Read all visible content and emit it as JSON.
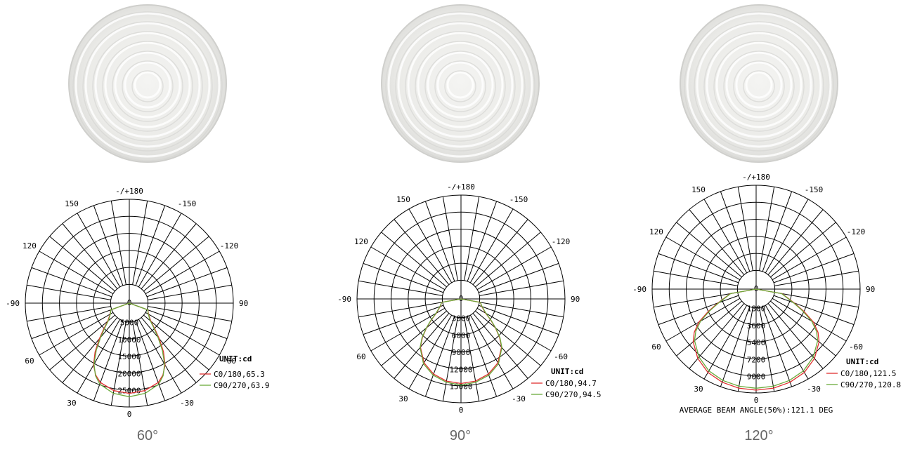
{
  "colors": {
    "c0_180": "#e03030",
    "c90_270": "#6aaa3a",
    "grid": "#000000",
    "caption": "#666666"
  },
  "icon": "lens-photo",
  "chart_data": [
    {
      "type": "polar",
      "caption": "60°",
      "unit_label": "UNIT:cd",
      "angle_labels": [
        "-/+180",
        "150",
        "120",
        "90",
        "60",
        "30",
        "0",
        "-30",
        "-60",
        "-90",
        "-120",
        "-150",
        "0"
      ],
      "radial_ticks": [
        "0",
        "5000",
        "10000",
        "15000",
        "20000",
        "25000"
      ],
      "rmax": 25000,
      "series": [
        {
          "name": "C0/180,65.3",
          "values": [
            [
              0,
              21000
            ],
            [
              10,
              20600
            ],
            [
              20,
              19300
            ],
            [
              25,
              17800
            ],
            [
              30,
              15500
            ],
            [
              35,
              12000
            ],
            [
              40,
              8200
            ],
            [
              45,
              5000
            ],
            [
              50,
              2800
            ],
            [
              60,
              1000
            ],
            [
              70,
              300
            ],
            [
              90,
              0
            ]
          ]
        },
        {
          "name": "C90/270,63.9",
          "values": [
            [
              0,
              22000
            ],
            [
              10,
              21400
            ],
            [
              20,
              19800
            ],
            [
              25,
              18000
            ],
            [
              30,
              15200
            ],
            [
              35,
              11400
            ],
            [
              40,
              7600
            ],
            [
              45,
              4600
            ],
            [
              50,
              2500
            ],
            [
              60,
              900
            ],
            [
              70,
              250
            ],
            [
              90,
              0
            ]
          ]
        }
      ],
      "footer": ""
    },
    {
      "type": "polar",
      "caption": "90°",
      "unit_label": "UNIT:cd",
      "angle_labels": [
        "-/+180",
        "150",
        "120",
        "90",
        "60",
        "30",
        "0",
        "-30",
        "-60",
        "-90",
        "-120",
        "-150",
        "0"
      ],
      "radial_ticks": [
        "0",
        "3000",
        "6000",
        "9000",
        "12000",
        "15000"
      ],
      "rmax": 15000,
      "series": [
        {
          "name": "C0/180,94.7",
          "values": [
            [
              0,
              11600
            ],
            [
              10,
              11400
            ],
            [
              20,
              10800
            ],
            [
              30,
              9700
            ],
            [
              40,
              7800
            ],
            [
              45,
              6300
            ],
            [
              50,
              4600
            ],
            [
              55,
              3000
            ],
            [
              60,
              1700
            ],
            [
              70,
              600
            ],
            [
              80,
              150
            ],
            [
              90,
              0
            ]
          ]
        },
        {
          "name": "C90/270,94.5",
          "values": [
            [
              0,
              11900
            ],
            [
              10,
              11600
            ],
            [
              20,
              11000
            ],
            [
              30,
              9900
            ],
            [
              40,
              7900
            ],
            [
              45,
              6400
            ],
            [
              50,
              4700
            ],
            [
              55,
              3100
            ],
            [
              60,
              1800
            ],
            [
              70,
              650
            ],
            [
              80,
              170
            ],
            [
              90,
              0
            ]
          ]
        }
      ],
      "footer": ""
    },
    {
      "type": "polar",
      "caption": "120°",
      "unit_label": "UNIT:cd",
      "angle_labels": [
        "-/+180",
        "150",
        "120",
        "90",
        "60",
        "30",
        "0",
        "-30",
        "-60",
        "-90",
        "-120",
        "-150",
        "0"
      ],
      "radial_ticks": [
        "0",
        "1800",
        "3600",
        "5400",
        "7200",
        "9000"
      ],
      "rmax": 9000,
      "series": [
        {
          "name": "C0/180,121.5",
          "values": [
            [
              0,
              8700
            ],
            [
              10,
              8650
            ],
            [
              20,
              8500
            ],
            [
              30,
              8200
            ],
            [
              40,
              7600
            ],
            [
              50,
              6700
            ],
            [
              55,
              6000
            ],
            [
              60,
              5000
            ],
            [
              65,
              3600
            ],
            [
              70,
              2300
            ],
            [
              80,
              800
            ],
            [
              90,
              0
            ]
          ]
        },
        {
          "name": "C90/270,120.8",
          "values": [
            [
              0,
              8500
            ],
            [
              10,
              8450
            ],
            [
              20,
              8300
            ],
            [
              30,
              8000
            ],
            [
              40,
              7400
            ],
            [
              50,
              6500
            ],
            [
              55,
              5800
            ],
            [
              60,
              4800
            ],
            [
              65,
              3400
            ],
            [
              70,
              2200
            ],
            [
              80,
              750
            ],
            [
              90,
              0
            ]
          ]
        }
      ],
      "footer": "AVERAGE BEAM ANGLE(50%):121.1 DEG"
    }
  ]
}
